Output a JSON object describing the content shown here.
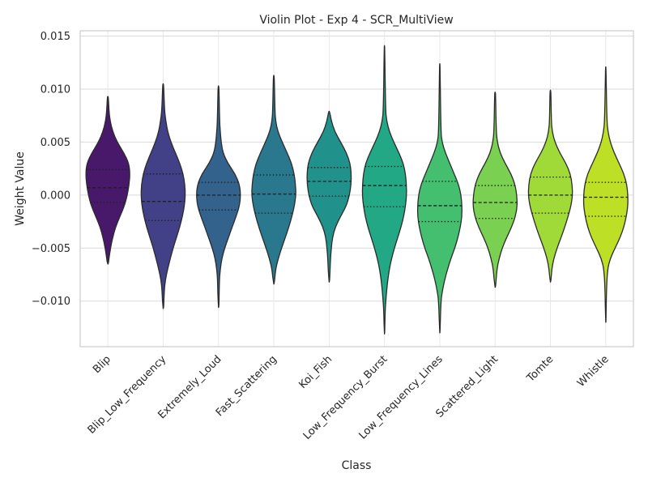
{
  "chart_data": {
    "type": "violin",
    "title": "Violin Plot - Exp 4 - SCR_MultiView",
    "xlabel": "Class",
    "ylabel": "Weight Value",
    "ylim": [
      -0.0143,
      0.0155
    ],
    "yticks": [
      -0.01,
      -0.005,
      0.0,
      0.005,
      0.01,
      0.015
    ],
    "ytick_labels": [
      "−0.010",
      "−0.005",
      "0.000",
      "0.005",
      "0.010",
      "0.015"
    ],
    "grid": true,
    "palette": "viridis",
    "categories": [
      "Blip",
      "Blip_Low_Frequency",
      "Extremely_Loud",
      "Fast_Scattering",
      "Koi_Fish",
      "Low_Frequency_Burst",
      "Low_Frequency_Lines",
      "Scattered_Light",
      "Tomte",
      "Whistle"
    ],
    "colors": [
      "#48186a",
      "#424086",
      "#33638d",
      "#2a788e",
      "#21918c",
      "#22a884",
      "#44bf70",
      "#7ad151",
      "#a0da39",
      "#bddf26"
    ],
    "series": [
      {
        "category": "Blip",
        "color": "#48186a",
        "min": -0.0065,
        "max": 0.0093,
        "q1": -0.0007,
        "median": 0.0007,
        "q3": 0.0024,
        "profile": [
          [
            -0.0065,
            0.02
          ],
          [
            -0.006,
            0.05
          ],
          [
            -0.005,
            0.12
          ],
          [
            -0.004,
            0.22
          ],
          [
            -0.003,
            0.35
          ],
          [
            -0.002,
            0.55
          ],
          [
            -0.001,
            0.75
          ],
          [
            0.0,
            0.88
          ],
          [
            0.001,
            0.96
          ],
          [
            0.002,
            1.0
          ],
          [
            0.003,
            0.95
          ],
          [
            0.004,
            0.72
          ],
          [
            0.005,
            0.42
          ],
          [
            0.006,
            0.22
          ],
          [
            0.007,
            0.1
          ],
          [
            0.008,
            0.05
          ],
          [
            0.0093,
            0.02
          ]
        ]
      },
      {
        "category": "Blip_Low_Frequency",
        "color": "#424086",
        "min": -0.0107,
        "max": 0.0105,
        "q1": -0.0024,
        "median": -0.0006,
        "q3": 0.002,
        "profile": [
          [
            -0.0107,
            0.02
          ],
          [
            -0.009,
            0.05
          ],
          [
            -0.008,
            0.1
          ],
          [
            -0.007,
            0.2
          ],
          [
            -0.006,
            0.32
          ],
          [
            -0.005,
            0.45
          ],
          [
            -0.004,
            0.6
          ],
          [
            -0.003,
            0.75
          ],
          [
            -0.002,
            0.87
          ],
          [
            -0.001,
            0.96
          ],
          [
            0.0,
            1.0
          ],
          [
            0.001,
            0.98
          ],
          [
            0.002,
            0.9
          ],
          [
            0.003,
            0.75
          ],
          [
            0.004,
            0.55
          ],
          [
            0.005,
            0.35
          ],
          [
            0.006,
            0.2
          ],
          [
            0.007,
            0.12
          ],
          [
            0.008,
            0.06
          ],
          [
            0.0105,
            0.02
          ]
        ]
      },
      {
        "category": "Extremely_Loud",
        "color": "#33638d",
        "min": -0.0106,
        "max": 0.0103,
        "q1": -0.0014,
        "median": 0.0,
        "q3": 0.0012,
        "profile": [
          [
            -0.0106,
            0.02
          ],
          [
            -0.008,
            0.04
          ],
          [
            -0.007,
            0.08
          ],
          [
            -0.006,
            0.15
          ],
          [
            -0.005,
            0.28
          ],
          [
            -0.004,
            0.45
          ],
          [
            -0.003,
            0.62
          ],
          [
            -0.002,
            0.8
          ],
          [
            -0.001,
            0.95
          ],
          [
            0.0,
            1.0
          ],
          [
            0.001,
            0.95
          ],
          [
            0.002,
            0.75
          ],
          [
            0.003,
            0.42
          ],
          [
            0.004,
            0.2
          ],
          [
            0.005,
            0.12
          ],
          [
            0.006,
            0.08
          ],
          [
            0.007,
            0.05
          ],
          [
            0.0103,
            0.02
          ]
        ]
      },
      {
        "category": "Fast_Scattering",
        "color": "#2a788e",
        "min": -0.0084,
        "max": 0.0113,
        "q1": -0.0017,
        "median": 0.0001,
        "q3": 0.0019,
        "profile": [
          [
            -0.0084,
            0.02
          ],
          [
            -0.007,
            0.08
          ],
          [
            -0.006,
            0.2
          ],
          [
            -0.005,
            0.35
          ],
          [
            -0.004,
            0.52
          ],
          [
            -0.003,
            0.68
          ],
          [
            -0.002,
            0.82
          ],
          [
            -0.001,
            0.93
          ],
          [
            0.0,
            1.0
          ],
          [
            0.001,
            0.98
          ],
          [
            0.002,
            0.92
          ],
          [
            0.003,
            0.8
          ],
          [
            0.004,
            0.6
          ],
          [
            0.005,
            0.38
          ],
          [
            0.006,
            0.18
          ],
          [
            0.007,
            0.08
          ],
          [
            0.008,
            0.05
          ],
          [
            0.0113,
            0.02
          ]
        ]
      },
      {
        "category": "Koi_Fish",
        "color": "#21918c",
        "min": -0.0082,
        "max": 0.0079,
        "q1": -0.0001,
        "median": 0.0013,
        "q3": 0.0026,
        "profile": [
          [
            -0.0082,
            0.02
          ],
          [
            -0.006,
            0.06
          ],
          [
            -0.005,
            0.1
          ],
          [
            -0.004,
            0.15
          ],
          [
            -0.003,
            0.28
          ],
          [
            -0.002,
            0.52
          ],
          [
            -0.001,
            0.78
          ],
          [
            0.0,
            0.92
          ],
          [
            0.001,
            0.99
          ],
          [
            0.002,
            1.0
          ],
          [
            0.003,
            0.95
          ],
          [
            0.004,
            0.78
          ],
          [
            0.005,
            0.52
          ],
          [
            0.006,
            0.25
          ],
          [
            0.007,
            0.1
          ],
          [
            0.0079,
            0.02
          ]
        ]
      },
      {
        "category": "Low_Frequency_Burst",
        "color": "#22a884",
        "min": -0.0131,
        "max": 0.0141,
        "q1": -0.0011,
        "median": 0.0009,
        "q3": 0.0027,
        "profile": [
          [
            -0.0131,
            0.01
          ],
          [
            -0.011,
            0.03
          ],
          [
            -0.01,
            0.06
          ],
          [
            -0.009,
            0.1
          ],
          [
            -0.008,
            0.15
          ],
          [
            -0.007,
            0.22
          ],
          [
            -0.006,
            0.32
          ],
          [
            -0.005,
            0.45
          ],
          [
            -0.004,
            0.6
          ],
          [
            -0.003,
            0.75
          ],
          [
            -0.002,
            0.87
          ],
          [
            -0.001,
            0.95
          ],
          [
            0.0,
            1.0
          ],
          [
            0.001,
            0.99
          ],
          [
            0.002,
            0.95
          ],
          [
            0.003,
            0.85
          ],
          [
            0.004,
            0.65
          ],
          [
            0.005,
            0.42
          ],
          [
            0.006,
            0.22
          ],
          [
            0.007,
            0.1
          ],
          [
            0.008,
            0.05
          ],
          [
            0.0141,
            0.01
          ]
        ]
      },
      {
        "category": "Low_Frequency_Lines",
        "color": "#44bf70",
        "min": -0.013,
        "max": 0.0124,
        "q1": -0.0025,
        "median": -0.001,
        "q3": 0.0013,
        "profile": [
          [
            -0.013,
            0.01
          ],
          [
            -0.01,
            0.05
          ],
          [
            -0.009,
            0.12
          ],
          [
            -0.008,
            0.22
          ],
          [
            -0.007,
            0.35
          ],
          [
            -0.006,
            0.5
          ],
          [
            -0.005,
            0.68
          ],
          [
            -0.004,
            0.82
          ],
          [
            -0.003,
            0.93
          ],
          [
            -0.002,
            1.0
          ],
          [
            -0.001,
            1.0
          ],
          [
            0.0,
            0.96
          ],
          [
            0.001,
            0.85
          ],
          [
            0.002,
            0.65
          ],
          [
            0.003,
            0.45
          ],
          [
            0.004,
            0.25
          ],
          [
            0.005,
            0.1
          ],
          [
            0.006,
            0.05
          ],
          [
            0.0124,
            0.01
          ]
        ]
      },
      {
        "category": "Scattered_Light",
        "color": "#7ad151",
        "min": -0.0087,
        "max": 0.0097,
        "q1": -0.0022,
        "median": -0.0007,
        "q3": 0.0009,
        "profile": [
          [
            -0.0087,
            0.02
          ],
          [
            -0.007,
            0.08
          ],
          [
            -0.006,
            0.18
          ],
          [
            -0.005,
            0.32
          ],
          [
            -0.004,
            0.52
          ],
          [
            -0.003,
            0.75
          ],
          [
            -0.002,
            0.92
          ],
          [
            -0.001,
            1.0
          ],
          [
            0.0,
            0.98
          ],
          [
            0.001,
            0.9
          ],
          [
            0.002,
            0.72
          ],
          [
            0.003,
            0.45
          ],
          [
            0.004,
            0.22
          ],
          [
            0.005,
            0.1
          ],
          [
            0.006,
            0.05
          ],
          [
            0.0097,
            0.02
          ]
        ]
      },
      {
        "category": "Tomte",
        "color": "#a0da39",
        "min": -0.0082,
        "max": 0.0099,
        "q1": -0.0017,
        "median": 0.0,
        "q3": 0.0017,
        "profile": [
          [
            -0.0082,
            0.02
          ],
          [
            -0.007,
            0.06
          ],
          [
            -0.006,
            0.15
          ],
          [
            -0.005,
            0.3
          ],
          [
            -0.004,
            0.48
          ],
          [
            -0.003,
            0.65
          ],
          [
            -0.002,
            0.8
          ],
          [
            -0.001,
            0.93
          ],
          [
            0.0,
            1.0
          ],
          [
            0.001,
            0.98
          ],
          [
            0.002,
            0.9
          ],
          [
            0.003,
            0.7
          ],
          [
            0.004,
            0.42
          ],
          [
            0.005,
            0.2
          ],
          [
            0.006,
            0.08
          ],
          [
            0.007,
            0.04
          ],
          [
            0.0099,
            0.02
          ]
        ]
      },
      {
        "category": "Whistle",
        "color": "#bddf26",
        "min": -0.012,
        "max": 0.0121,
        "q1": -0.002,
        "median": -0.0002,
        "q3": 0.0012,
        "profile": [
          [
            -0.012,
            0.01
          ],
          [
            -0.009,
            0.03
          ],
          [
            -0.007,
            0.08
          ],
          [
            -0.006,
            0.2
          ],
          [
            -0.005,
            0.42
          ],
          [
            -0.004,
            0.65
          ],
          [
            -0.003,
            0.82
          ],
          [
            -0.002,
            0.93
          ],
          [
            -0.001,
            1.0
          ],
          [
            0.0,
            1.0
          ],
          [
            0.001,
            0.95
          ],
          [
            0.002,
            0.82
          ],
          [
            0.003,
            0.6
          ],
          [
            0.004,
            0.38
          ],
          [
            0.005,
            0.2
          ],
          [
            0.006,
            0.1
          ],
          [
            0.007,
            0.05
          ],
          [
            0.0121,
            0.01
          ]
        ]
      }
    ]
  }
}
